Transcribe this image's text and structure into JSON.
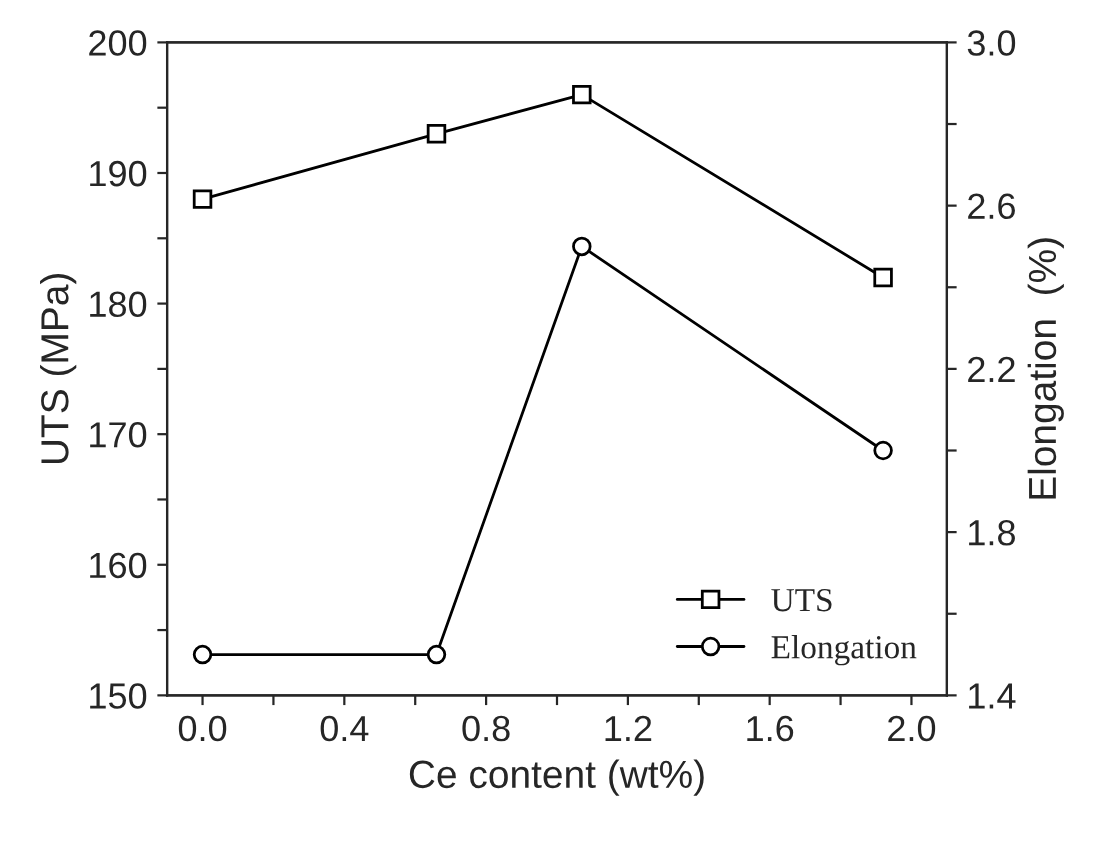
{
  "chart_data": {
    "type": "line",
    "xlabel": "Ce content (wt%)",
    "ylabel": "UTS (MPa)",
    "y2label": "Elongation  (%)",
    "x": [
      0,
      0.66,
      1.07,
      1.92
    ],
    "series": [
      {
        "name": "UTS",
        "color": "#000000",
        "marker": "square",
        "values": [
          188,
          193,
          196,
          182
        ]
      },
      {
        "name": "Elongation",
        "color": "#000000",
        "marker": "circle",
        "axis": "y2",
        "values": [
          1.5,
          1.5,
          2.5,
          2.0
        ]
      }
    ],
    "xlim": [
      -0.1,
      2.1
    ],
    "xticks": [
      {
        "value": 0,
        "label": "0.0"
      },
      {
        "value": 0.2,
        "label": null
      },
      {
        "value": 0.4,
        "label": "0.4"
      },
      {
        "value": 0.6,
        "label": null
      },
      {
        "value": 0.8,
        "label": "0.8"
      },
      {
        "value": 1.0,
        "label": null
      },
      {
        "value": 1.2,
        "label": "1.2"
      },
      {
        "value": 1.4,
        "label": null
      },
      {
        "value": 1.6,
        "label": "1.6"
      },
      {
        "value": 1.8,
        "label": null
      },
      {
        "value": 2.0,
        "label": "2.0"
      }
    ],
    "ylim": [
      150,
      200
    ],
    "yticks": [
      150,
      {
        "value": 155,
        "label": null
      },
      160,
      {
        "value": 165,
        "label": null
      },
      170,
      {
        "value": 175,
        "label": null
      },
      180,
      {
        "value": 185,
        "label": null
      },
      190,
      {
        "value": 195,
        "label": null
      },
      200
    ],
    "y2lim": [
      1.4,
      3.0
    ],
    "y2ticks": [
      1.4,
      {
        "value": 1.6,
        "label": null
      },
      1.8,
      {
        "value": 2.0,
        "label": null
      },
      2.2,
      {
        "value": 2.4,
        "label": null
      },
      2.6,
      {
        "value": 2.8,
        "label": null
      },
      {
        "value": 3.0,
        "label": "3.0"
      }
    ],
    "legend": "lower right",
    "grid": false,
    "line_style": "solid"
  }
}
